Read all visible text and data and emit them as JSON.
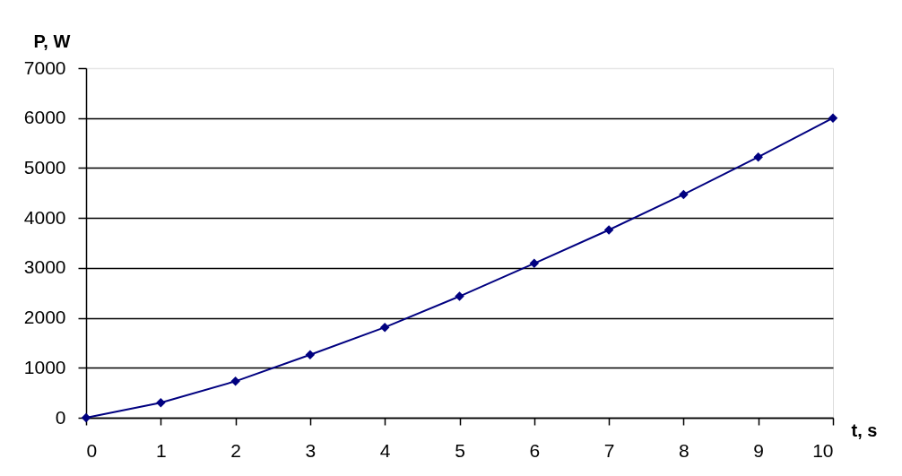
{
  "chart_data": {
    "type": "line",
    "xlabel": "t, s",
    "ylabel": "P, W",
    "x": [
      0,
      1,
      2,
      3,
      4,
      5,
      6,
      7,
      8,
      9,
      10
    ],
    "series": [
      {
        "color": "#000080",
        "values": [
          0,
          300,
          730,
          1260,
          1810,
          2430,
          3090,
          3760,
          4470,
          5220,
          6000
        ]
      }
    ],
    "xlim": [
      0,
      10
    ],
    "xticks": [
      0,
      1,
      2,
      3,
      4,
      5,
      6,
      7,
      8,
      9,
      10
    ],
    "ylim": [
      0,
      7000
    ],
    "yticks": [
      0,
      1000,
      2000,
      3000,
      4000,
      5000,
      6000,
      7000
    ],
    "grid": "y",
    "marker": "diamond",
    "line_style": "solid"
  }
}
